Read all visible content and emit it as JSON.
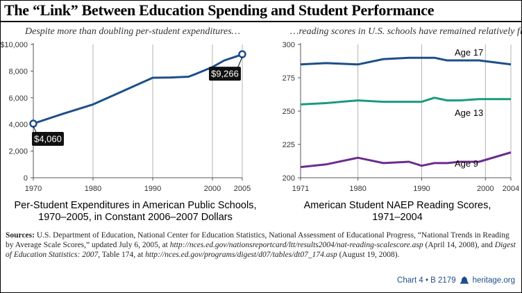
{
  "title": "The “Link” Between Education Spending and Student Performance",
  "subtitles": {
    "left": "Despite more than doubling per-student expenditures…",
    "right": "…reading scores in U.S. schools have remained relatively flat."
  },
  "colors": {
    "navy": "#1d4e89",
    "teal": "#1a9a80",
    "purple": "#6b2c8f",
    "grid": "#b3b3b3",
    "footer": "#1c4e8b"
  },
  "chart_data": [
    {
      "type": "line",
      "x_ticks": [
        1970,
        1980,
        1990,
        2000,
        2005
      ],
      "y_ticks": [
        "0",
        "2,000",
        "4,000",
        "6,000",
        "8,000",
        "$10,000"
      ],
      "y_tick_values": [
        0,
        2000,
        4000,
        6000,
        8000,
        10000
      ],
      "xlim": [
        1970,
        2005
      ],
      "ylim": [
        0,
        10000
      ],
      "series": [
        {
          "color": "#1d4e89",
          "x": [
            1970,
            1975,
            1980,
            1985,
            1990,
            1993,
            1996,
            1997,
            2000,
            2002,
            2004,
            2005
          ],
          "y": [
            4060,
            4800,
            5500,
            6500,
            7500,
            7520,
            7580,
            7750,
            8300,
            8800,
            9100,
            9266
          ]
        }
      ],
      "annotations": [
        {
          "x": 1970,
          "y": 4060,
          "label": "$4,060"
        },
        {
          "x": 2005,
          "y": 9266,
          "label": "$9,266"
        }
      ],
      "caption_lines": [
        "Per-Student Expenditures in American Public Schools,",
        "1970–2005, in Constant 2006–2007 Dollars"
      ]
    },
    {
      "type": "line",
      "x_ticks": [
        "1971",
        "1980",
        "1990",
        "2000",
        "2004"
      ],
      "x_tick_values": [
        1971,
        1980,
        1990,
        2000,
        2004
      ],
      "y_ticks": [
        "200",
        "225",
        "250",
        "275",
        "300"
      ],
      "y_tick_values": [
        200,
        225,
        250,
        275,
        300
      ],
      "xlim": [
        1971,
        2004
      ],
      "ylim": [
        200,
        300
      ],
      "series": [
        {
          "name": "Age 17",
          "color": "#1d4e89",
          "x": [
            1971,
            1975,
            1980,
            1984,
            1988,
            1990,
            1992,
            1994,
            1996,
            1999,
            2004
          ],
          "y": [
            285,
            286,
            285,
            289,
            290,
            290,
            290,
            288,
            288,
            288,
            285
          ]
        },
        {
          "name": "Age 13",
          "color": "#1a9a80",
          "x": [
            1971,
            1975,
            1980,
            1984,
            1988,
            1990,
            1992,
            1994,
            1996,
            1999,
            2004
          ],
          "y": [
            255,
            256,
            258,
            257,
            257,
            257,
            260,
            258,
            258,
            259,
            259
          ]
        },
        {
          "name": "Age 9",
          "color": "#6b2c8f",
          "x": [
            1971,
            1975,
            1980,
            1984,
            1988,
            1990,
            1992,
            1994,
            1996,
            1999,
            2004
          ],
          "y": [
            208,
            210,
            215,
            211,
            212,
            209,
            211,
            211,
            212,
            212,
            219
          ]
        }
      ],
      "caption_lines": [
        "American Student NAEP Reading Scores,",
        "1971–2004"
      ]
    }
  ],
  "sources": {
    "label": "Sources:",
    "t1": " U.S. Department of Education, National Center for Education Statistics, National Assessment of Educational Progress, “National Trends in Reading by Average Scale Scores,” updated July 6, 2005, at ",
    "url1": "http://nces.ed.gov/nationsreportcard/ltt/results2004/nat-reading-scalescore.asp",
    "t2": " (April 14, 2008), and ",
    "digest": "Digest of Education Statistics: 2007",
    "t3": ", Table 174, at ",
    "url2": "http://nces.ed.gov/programs/digest/d07/tables/dt07_174.asp",
    "t4": " (August 19, 2008)."
  },
  "footer": {
    "chart_id": "Chart 4 • B 2179",
    "site": "heritage.org",
    "icon": "liberty-bell-icon"
  }
}
